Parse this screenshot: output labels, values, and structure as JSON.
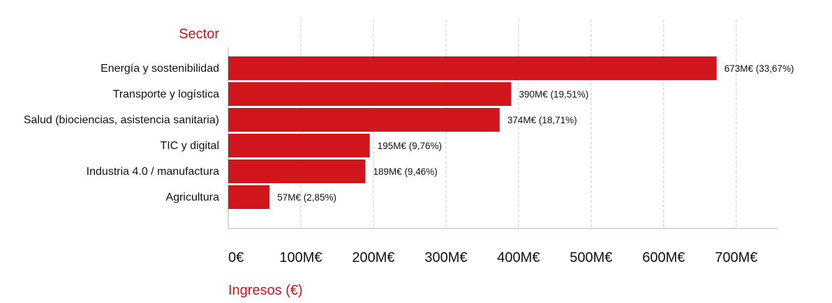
{
  "chart_data": {
    "type": "bar",
    "orientation": "horizontal",
    "ylabel": "Sector",
    "xlabel": "Ingresos (€)",
    "categories": [
      "Energía y sostenibilidad",
      "Transporte y logística",
      "Salud (biociencias, asistencia sanitaria)",
      "TIC y digital",
      "Industria 4.0 / manufactura",
      "Agricultura"
    ],
    "values": [
      673,
      390,
      374,
      195,
      189,
      57
    ],
    "value_labels": [
      "673M€ (33,67%)",
      "390M€ (19,51%)",
      "374M€ (18,71%)",
      "195M€ (9,76%)",
      "189M€ (9,46%)",
      "57M€ (2,85%)"
    ],
    "xticks": [
      0,
      100,
      200,
      300,
      400,
      500,
      600,
      700
    ],
    "xtick_labels": [
      "0€",
      "100M€",
      "200M€",
      "300M€",
      "400M€",
      "500M€",
      "600M€",
      "700M€"
    ],
    "xlim": [
      0,
      730
    ],
    "grid": "vertical dashed",
    "legend": "none",
    "colors": {
      "bar": "#d0161c",
      "accent_text": "#c8161c",
      "grid": "#c8c8c8"
    }
  }
}
